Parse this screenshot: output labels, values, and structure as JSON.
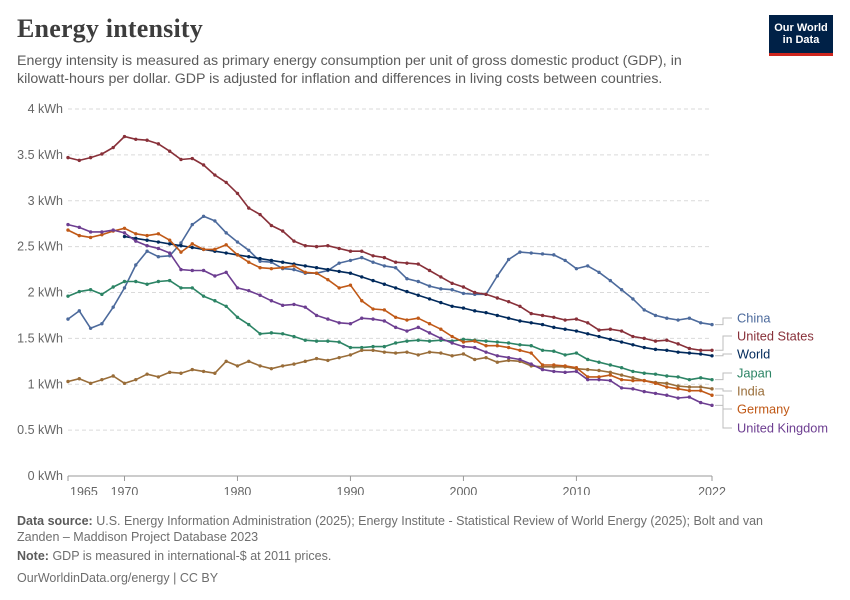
{
  "header": {
    "title": "Energy intensity",
    "subtitle": "Energy intensity is measured as primary energy consumption per unit of gross domestic product (GDP), in kilowatt-hours per dollar. GDP is adjusted for inflation and differences in living costs between countries.",
    "logo_line1": "Our World",
    "logo_line2": "in Data"
  },
  "footer": {
    "source_label": "Data source:",
    "source_text": "U.S. Energy Information Administration (2025); Energy Institute - Statistical Review of World Energy (2025); Bolt and van Zanden – Maddison Project Database 2023",
    "note_label": "Note:",
    "note_text": "GDP is measured in international-$ at 2011 prices.",
    "link_text": "OurWorldinData.org/energy",
    "license": "| CC BY"
  },
  "chart_data": {
    "type": "line",
    "title": "Energy intensity",
    "ylabel": "",
    "xlim": [
      1965,
      2022
    ],
    "ylim": [
      0,
      4
    ],
    "grid": true,
    "y_ticks": [
      0,
      0.5,
      1,
      1.5,
      2,
      2.5,
      3,
      3.5,
      4
    ],
    "y_tick_labels": [
      "0 kWh",
      "0.5 kWh",
      "1 kWh",
      "1.5 kWh",
      "2 kWh",
      "2.5 kWh",
      "3 kWh",
      "3.5 kWh",
      "4 kWh"
    ],
    "x_ticks": [
      1965,
      1970,
      1980,
      1990,
      2000,
      2010,
      2022
    ],
    "x_tick_labels": [
      "1965",
      "1970",
      "1980",
      "1990",
      "2000",
      "2010",
      "2022"
    ],
    "legend_placement": "right",
    "series": [
      {
        "name": "China",
        "color": "#4c6a9c",
        "start": 1965,
        "values": [
          1.71,
          1.8,
          1.61,
          1.66,
          1.84,
          2.05,
          2.3,
          2.45,
          2.39,
          2.4,
          2.54,
          2.74,
          2.83,
          2.78,
          2.65,
          2.55,
          2.46,
          2.34,
          2.33,
          2.26,
          2.25,
          2.21,
          2.21,
          2.24,
          2.32,
          2.35,
          2.38,
          2.33,
          2.29,
          2.27,
          2.15,
          2.12,
          2.07,
          2.04,
          2.03,
          1.99,
          1.98,
          1.98,
          2.18,
          2.36,
          2.44,
          2.43,
          2.42,
          2.41,
          2.35,
          2.26,
          2.29,
          2.22,
          2.13,
          2.03,
          1.93,
          1.81,
          1.75,
          1.72,
          1.7,
          1.72,
          1.67,
          1.65
        ]
      },
      {
        "name": "United States",
        "color": "#883039",
        "start": 1965,
        "values": [
          3.47,
          3.44,
          3.47,
          3.51,
          3.58,
          3.7,
          3.67,
          3.66,
          3.62,
          3.54,
          3.45,
          3.46,
          3.39,
          3.28,
          3.2,
          3.08,
          2.92,
          2.85,
          2.73,
          2.67,
          2.56,
          2.51,
          2.5,
          2.51,
          2.48,
          2.45,
          2.45,
          2.4,
          2.38,
          2.33,
          2.32,
          2.31,
          2.24,
          2.17,
          2.1,
          2.06,
          2.0,
          1.98,
          1.94,
          1.9,
          1.85,
          1.77,
          1.75,
          1.73,
          1.7,
          1.71,
          1.67,
          1.59,
          1.6,
          1.58,
          1.52,
          1.5,
          1.47,
          1.48,
          1.44,
          1.39,
          1.37,
          1.37
        ]
      },
      {
        "name": "World",
        "color": "#00295b",
        "start": 1970,
        "values": [
          2.61,
          2.59,
          2.57,
          2.55,
          2.53,
          2.51,
          2.49,
          2.47,
          2.45,
          2.43,
          2.41,
          2.39,
          2.37,
          2.35,
          2.33,
          2.31,
          2.29,
          2.27,
          2.25,
          2.23,
          2.21,
          2.17,
          2.13,
          2.09,
          2.05,
          2.01,
          1.97,
          1.93,
          1.89,
          1.85,
          1.83,
          1.8,
          1.78,
          1.75,
          1.72,
          1.69,
          1.67,
          1.65,
          1.62,
          1.6,
          1.58,
          1.55,
          1.52,
          1.49,
          1.46,
          1.43,
          1.4,
          1.38,
          1.37,
          1.35,
          1.34,
          1.33,
          1.31
        ]
      },
      {
        "name": "Japan",
        "color": "#2c8465",
        "start": 1965,
        "values": [
          1.96,
          2.01,
          2.03,
          1.98,
          2.06,
          2.12,
          2.12,
          2.09,
          2.12,
          2.13,
          2.05,
          2.05,
          1.96,
          1.91,
          1.85,
          1.73,
          1.65,
          1.55,
          1.56,
          1.55,
          1.52,
          1.48,
          1.47,
          1.47,
          1.46,
          1.4,
          1.4,
          1.41,
          1.41,
          1.45,
          1.47,
          1.48,
          1.47,
          1.48,
          1.47,
          1.49,
          1.48,
          1.47,
          1.46,
          1.45,
          1.43,
          1.42,
          1.37,
          1.36,
          1.32,
          1.34,
          1.27,
          1.24,
          1.21,
          1.18,
          1.14,
          1.12,
          1.11,
          1.09,
          1.08,
          1.05,
          1.07,
          1.05
        ]
      },
      {
        "name": "India",
        "color": "#996d39",
        "start": 1965,
        "values": [
          1.03,
          1.06,
          1.01,
          1.05,
          1.09,
          1.01,
          1.05,
          1.11,
          1.08,
          1.13,
          1.12,
          1.16,
          1.14,
          1.12,
          1.25,
          1.2,
          1.25,
          1.2,
          1.17,
          1.2,
          1.22,
          1.25,
          1.28,
          1.26,
          1.29,
          1.32,
          1.37,
          1.37,
          1.35,
          1.34,
          1.35,
          1.32,
          1.35,
          1.34,
          1.31,
          1.33,
          1.27,
          1.29,
          1.24,
          1.26,
          1.25,
          1.2,
          1.19,
          1.19,
          1.19,
          1.17,
          1.16,
          1.15,
          1.13,
          1.1,
          1.07,
          1.04,
          1.02,
          1.01,
          0.98,
          0.97,
          0.97,
          0.95
        ]
      },
      {
        "name": "Germany",
        "color": "#c05917",
        "start": 1965,
        "values": [
          2.68,
          2.62,
          2.6,
          2.63,
          2.67,
          2.7,
          2.64,
          2.62,
          2.64,
          2.57,
          2.44,
          2.53,
          2.47,
          2.47,
          2.52,
          2.41,
          2.33,
          2.27,
          2.26,
          2.27,
          2.29,
          2.22,
          2.21,
          2.14,
          2.05,
          2.08,
          1.91,
          1.82,
          1.81,
          1.73,
          1.7,
          1.72,
          1.66,
          1.6,
          1.52,
          1.46,
          1.47,
          1.42,
          1.42,
          1.4,
          1.37,
          1.34,
          1.21,
          1.21,
          1.2,
          1.18,
          1.08,
          1.08,
          1.1,
          1.05,
          1.04,
          1.04,
          1.01,
          0.97,
          0.95,
          0.93,
          0.93,
          0.88
        ]
      },
      {
        "name": "United Kingdom",
        "color": "#6d3e91",
        "start": 1965,
        "values": [
          2.74,
          2.71,
          2.66,
          2.66,
          2.68,
          2.65,
          2.56,
          2.51,
          2.48,
          2.43,
          2.25,
          2.24,
          2.24,
          2.18,
          2.22,
          2.05,
          2.02,
          1.97,
          1.91,
          1.86,
          1.87,
          1.84,
          1.75,
          1.71,
          1.67,
          1.66,
          1.72,
          1.71,
          1.69,
          1.62,
          1.58,
          1.62,
          1.56,
          1.5,
          1.45,
          1.41,
          1.4,
          1.35,
          1.31,
          1.29,
          1.27,
          1.22,
          1.16,
          1.14,
          1.13,
          1.14,
          1.05,
          1.05,
          1.04,
          0.96,
          0.95,
          0.92,
          0.9,
          0.88,
          0.85,
          0.86,
          0.8,
          0.77
        ]
      }
    ]
  }
}
